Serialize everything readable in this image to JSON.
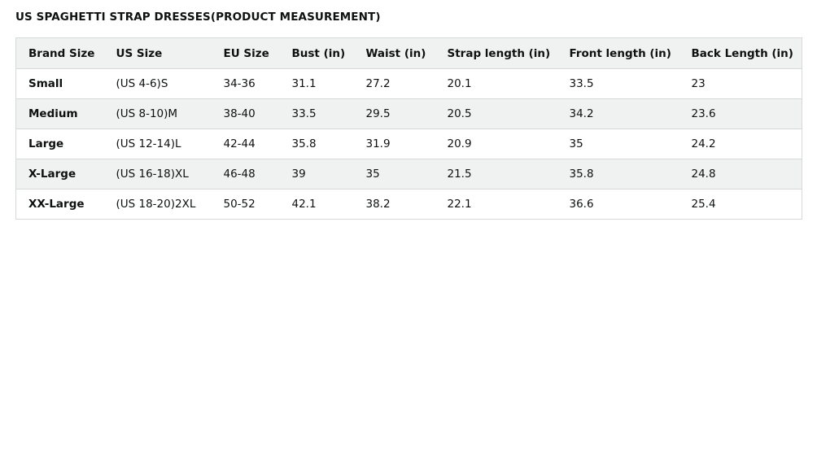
{
  "title": "US SPAGHETTI STRAP DRESSES(PRODUCT MEASUREMENT)",
  "table": {
    "headers": [
      "Brand Size",
      "US Size",
      "EU Size",
      "Bust (in)",
      "Waist (in)",
      "Strap length (in)",
      "Front length (in)",
      "Back Length (in)"
    ],
    "rows": [
      [
        "Small",
        "(US 4-6)S",
        "34-36",
        "31.1",
        "27.2",
        "20.1",
        "33.5",
        "23"
      ],
      [
        "Medium",
        "(US 8-10)M",
        "38-40",
        "33.5",
        "29.5",
        "20.5",
        "34.2",
        "23.6"
      ],
      [
        "Large",
        "(US 12-14)L",
        "42-44",
        "35.8",
        "31.9",
        "20.9",
        "35",
        "24.2"
      ],
      [
        "X-Large",
        "(US 16-18)XL",
        "46-48",
        "39",
        "35",
        "21.5",
        "35.8",
        "24.8"
      ],
      [
        "XX-Large",
        "(US 18-20)2XL",
        "50-52",
        "42.1",
        "38.2",
        "22.1",
        "36.6",
        "25.4"
      ]
    ]
  }
}
